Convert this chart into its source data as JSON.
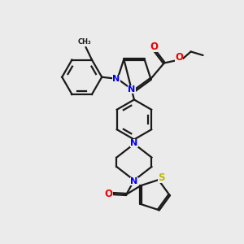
{
  "bg_color": "#ebebeb",
  "bond_color": "#1a1a1a",
  "N_color": "#0000ee",
  "O_color": "#ee0000",
  "S_color": "#bbbb00",
  "line_width": 1.6,
  "dbo": 0.035,
  "figsize": [
    3.0,
    3.0
  ],
  "dpi": 100,
  "xlim": [
    0,
    10
  ],
  "ylim": [
    0,
    10
  ]
}
